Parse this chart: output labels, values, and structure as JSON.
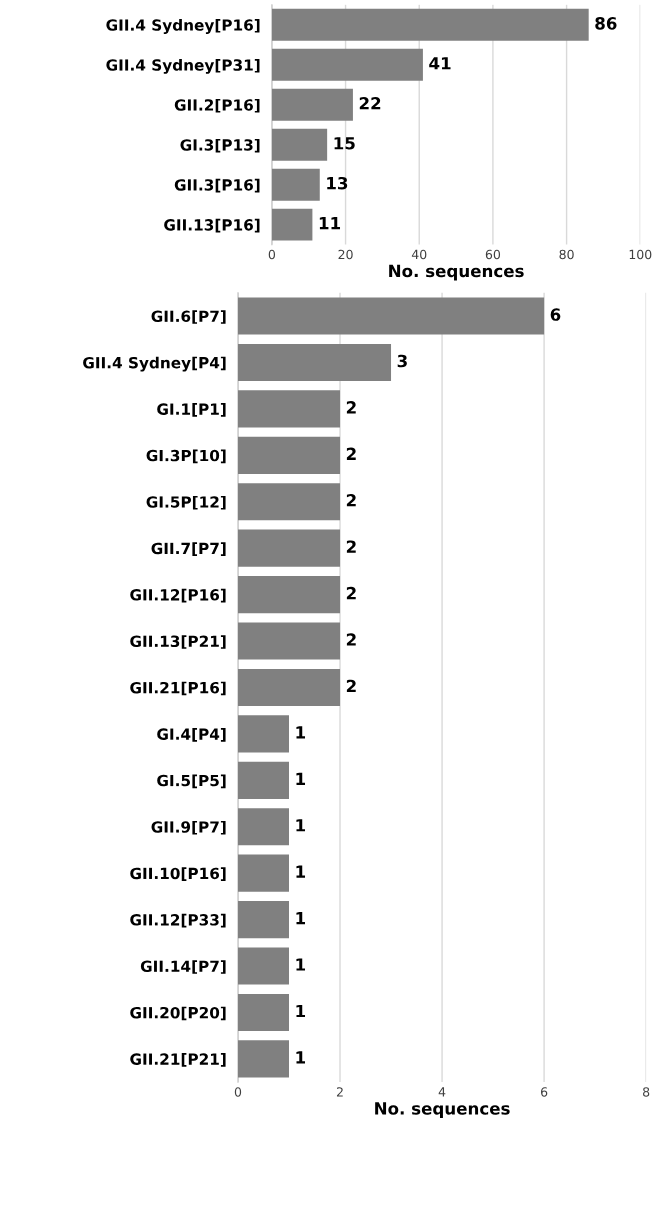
{
  "chart_data": [
    {
      "type": "bar",
      "orientation": "horizontal",
      "categories": [
        "GII.4 Sydney[P16]",
        "GII.4 Sydney[P31]",
        "GII.2[P16]",
        "GI.3[P13]",
        "GII.3[P16]",
        "GII.13[P16]"
      ],
      "values": [
        86,
        41,
        22,
        15,
        13,
        11
      ],
      "color": "#808080",
      "xlabel": "No. sequences",
      "xlim": [
        0,
        100
      ],
      "xticks": [
        0,
        20,
        40,
        60,
        80,
        100
      ],
      "grid": "x",
      "data_labels": true
    },
    {
      "type": "bar",
      "orientation": "horizontal",
      "categories": [
        "GII.6[P7]",
        "GII.4 Sydney[P4]",
        "GI.1[P1]",
        "GI.3P[10]",
        "GI.5P[12]",
        "GII.7[P7]",
        "GII.12[P16]",
        "GII.13[P21]",
        "GII.21[P16]",
        "GI.4[P4]",
        "GI.5[P5]",
        "GII.9[P7]",
        "GII.10[P16]",
        "GII.12[P33]",
        "GII.14[P7]",
        "GII.20[P20]",
        "GII.21[P21]"
      ],
      "values": [
        6,
        3,
        2,
        2,
        2,
        2,
        2,
        2,
        2,
        1,
        1,
        1,
        1,
        1,
        1,
        1,
        1
      ],
      "color": "#808080",
      "xlabel": "No. sequences",
      "xlim": [
        0,
        8
      ],
      "xticks": [
        0,
        2,
        4,
        6,
        8
      ],
      "grid": "x",
      "data_labels": true
    }
  ]
}
